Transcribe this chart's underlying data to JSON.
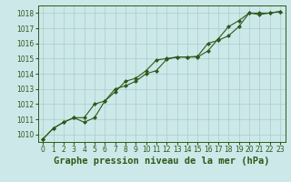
{
  "title": "Graphe pression niveau de la mer (hPa)",
  "background_color": "#cce8e8",
  "plot_bg_color": "#cce8e8",
  "grid_color": "#aacccc",
  "line_color": "#2d5a1b",
  "marker_color": "#2d5a1b",
  "ylim": [
    1009.5,
    1018.5
  ],
  "xlim": [
    -0.5,
    23.5
  ],
  "yticks": [
    1010,
    1011,
    1012,
    1013,
    1014,
    1015,
    1016,
    1017,
    1018
  ],
  "xticks": [
    0,
    1,
    2,
    3,
    4,
    5,
    6,
    7,
    8,
    9,
    10,
    11,
    12,
    13,
    14,
    15,
    16,
    17,
    18,
    19,
    20,
    21,
    22,
    23
  ],
  "series1_x": [
    0,
    1,
    2,
    3,
    4,
    5,
    6,
    7,
    8,
    9,
    10,
    11,
    12,
    13,
    14,
    15,
    16,
    17,
    18,
    19,
    20,
    21,
    22,
    23
  ],
  "series1_y": [
    1009.7,
    1010.4,
    1010.8,
    1011.1,
    1011.1,
    1012.0,
    1012.2,
    1012.8,
    1013.5,
    1013.7,
    1014.2,
    1014.9,
    1015.0,
    1015.1,
    1015.1,
    1015.1,
    1015.5,
    1016.3,
    1017.1,
    1017.5,
    1018.0,
    1017.9,
    1018.0,
    1018.1
  ],
  "series2_x": [
    0,
    1,
    2,
    3,
    4,
    5,
    6,
    7,
    8,
    9,
    10,
    11,
    12,
    13,
    14,
    15,
    16,
    17,
    18,
    19,
    20,
    21,
    22,
    23
  ],
  "series2_y": [
    1009.7,
    1010.4,
    1010.8,
    1011.1,
    1010.8,
    1011.1,
    1012.2,
    1013.0,
    1013.2,
    1013.5,
    1014.0,
    1014.2,
    1014.95,
    1015.1,
    1015.1,
    1015.15,
    1016.0,
    1016.2,
    1016.5,
    1017.1,
    1018.0,
    1018.0,
    1018.0,
    1018.1
  ],
  "title_fontsize": 7.5,
  "tick_fontsize": 5.5,
  "fig_width": 3.2,
  "fig_height": 2.0,
  "dpi": 100
}
